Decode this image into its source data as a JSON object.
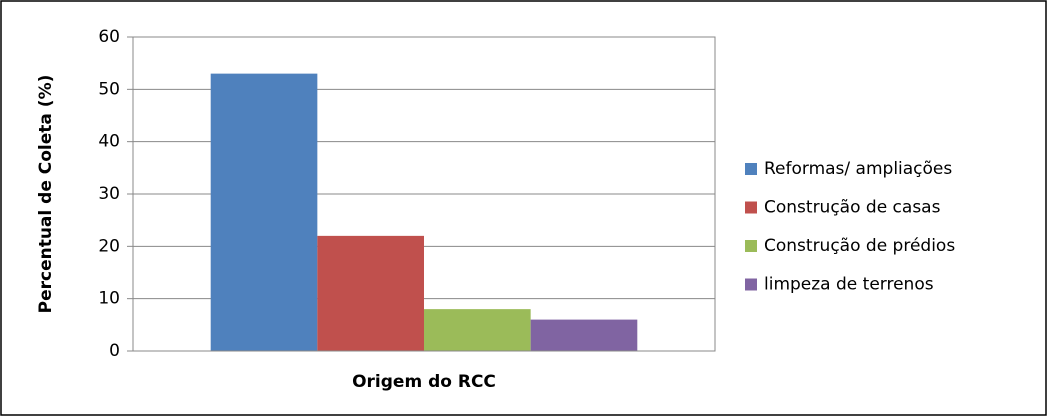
{
  "chart_data": {
    "type": "bar",
    "x_label": "Origem do RCC",
    "y_label": "Percentual de Coleta (%)",
    "categories": [
      null
    ],
    "series": [
      {
        "name": "Reformas/ ampliações",
        "color": "#4f81bd",
        "values": [
          53
        ]
      },
      {
        "name": "Construção de casas",
        "color": "#c0504d",
        "values": [
          22
        ]
      },
      {
        "name": "Construção de prédios",
        "color": "#9bbb59",
        "values": [
          8
        ]
      },
      {
        "name": "limpeza de terrenos",
        "color": "#8064a2",
        "values": [
          6
        ]
      }
    ],
    "ylim": [
      0,
      60
    ],
    "yticks": [
      0,
      10,
      20,
      30,
      40,
      50,
      60
    ],
    "grid": true,
    "legend": "right"
  }
}
